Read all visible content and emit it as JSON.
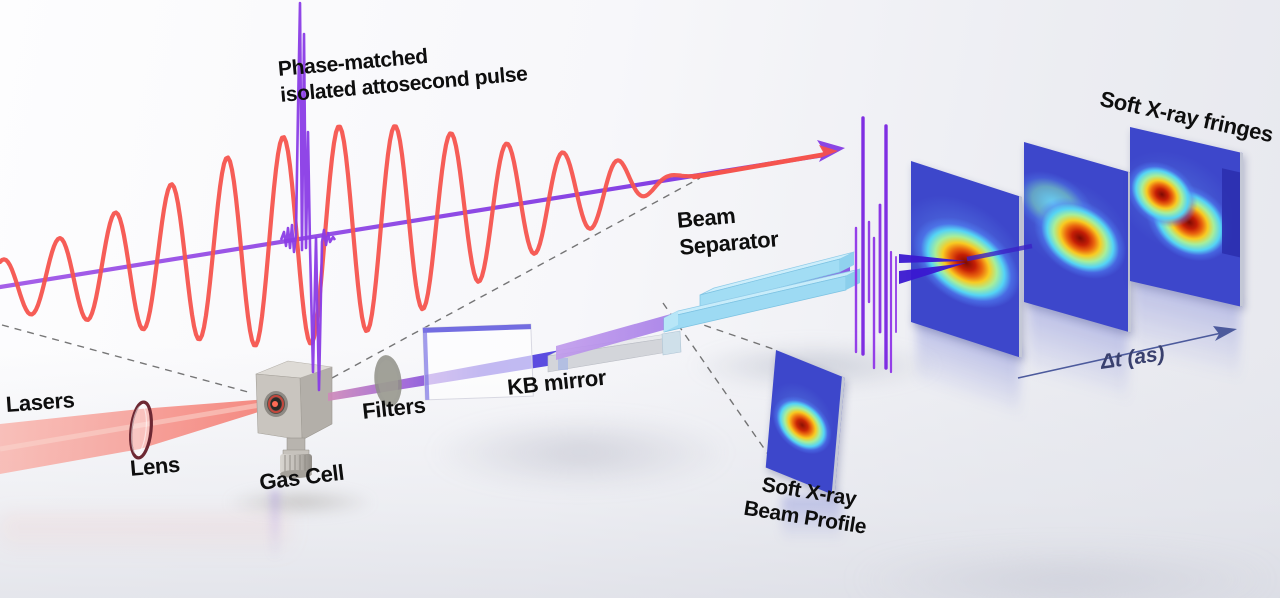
{
  "labels": {
    "phase_matched_line1": "Phase-matched",
    "phase_matched_line2": "isolated attosecond pulse",
    "soft_xray_fringes": "Soft X-ray fringes",
    "beam_separator_line1": "Beam",
    "beam_separator_line2": "Separator",
    "lasers": "Lasers",
    "lens": "Lens",
    "gas_cell": "Gas Cell",
    "filters": "Filters",
    "kb_mirror": "KB mirror",
    "sxr_profile_line1": "Soft X-ray",
    "sxr_profile_line2": "Beam Profile",
    "delta_t_axis": "Δt (as)"
  },
  "colors": {
    "laser_red": "#f5544e",
    "attosecond_purple": "#8a3ce6",
    "xray_beam_indigo": "#3a18d0",
    "separator_cyan": "#a2ddf4",
    "detector_panel_blue": "#3d47cb",
    "hotspot_core_red": "#7d0a03",
    "axis_arrow_blue": "#4c5a9c",
    "background": "#f6f6f9"
  }
}
